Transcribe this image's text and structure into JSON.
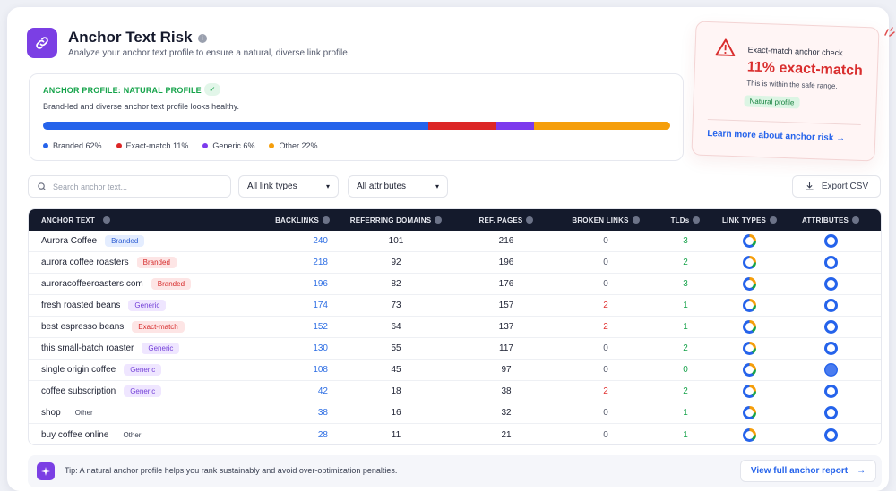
{
  "header": {
    "title": "Anchor Text Risk",
    "subtitle": "Analyze your anchor text profile to ensure a natural, diverse link profile."
  },
  "profile": {
    "status": "ANCHOR PROFILE: NATURAL PROFILE",
    "description": "Brand-led and diverse anchor text profile looks healthy.",
    "segments": [
      {
        "label": "Branded 62%",
        "percent": 62,
        "color": "#2563eb"
      },
      {
        "label": "Exact-match 11%",
        "percent": 11,
        "color": "#dc2626"
      },
      {
        "label": "Generic 6%",
        "percent": 6,
        "color": "#7c3aed"
      },
      {
        "label": "Other 22%",
        "percent": 22,
        "color": "#f59e0b"
      }
    ]
  },
  "risk_card": {
    "label": "Exact-match anchor check",
    "value": "11% exact-match",
    "note": "This is within the safe range.",
    "chip": "Natural profile",
    "link": "Learn more about anchor risk"
  },
  "controls": {
    "search_placeholder": "Search anchor text...",
    "link_type": "All link types",
    "attributes": "All attributes",
    "export": "Export CSV"
  },
  "table": {
    "columns": [
      "ANCHOR TEXT",
      "BACKLINKS",
      "REFERRING DOMAINS",
      "REF. PAGES",
      "BROKEN LINKS",
      "TLDs",
      "LINK TYPES",
      "ATTRIBUTES"
    ],
    "rows": [
      {
        "anchor": "Aurora Coffee",
        "tag": "Branded",
        "tag_type": "branded",
        "backlinks": "240",
        "domains": "101",
        "pages": "216",
        "broken": "0",
        "tlds": "3"
      },
      {
        "anchor": "aurora coffee roasters",
        "tag": "Branded",
        "tag_type": "exact",
        "backlinks": "218",
        "domains": "92",
        "pages": "196",
        "broken": "0",
        "tlds": "2"
      },
      {
        "anchor": "auroracoffeeroasters.com",
        "tag": "Branded",
        "tag_type": "exact",
        "backlinks": "196",
        "domains": "82",
        "pages": "176",
        "broken": "0",
        "tlds": "3"
      },
      {
        "anchor": "fresh roasted beans",
        "tag": "Generic",
        "tag_type": "generic",
        "backlinks": "174",
        "domains": "73",
        "pages": "157",
        "broken": "2",
        "tlds": "1"
      },
      {
        "anchor": "best espresso beans",
        "tag": "Exact-match",
        "tag_type": "exact",
        "backlinks": "152",
        "domains": "64",
        "pages": "137",
        "broken": "2",
        "tlds": "1"
      },
      {
        "anchor": "this small-batch roaster",
        "tag": "Generic",
        "tag_type": "generic",
        "backlinks": "130",
        "domains": "55",
        "pages": "117",
        "broken": "0",
        "tlds": "2"
      },
      {
        "anchor": "single origin coffee",
        "tag": "Generic",
        "tag_type": "generic",
        "backlinks": "108",
        "domains": "45",
        "pages": "97",
        "broken": "0",
        "tlds": "0"
      },
      {
        "anchor": "coffee subscription",
        "tag": "Generic",
        "tag_type": "generic",
        "backlinks": "42",
        "domains": "18",
        "pages": "38",
        "broken": "2",
        "tlds": "2"
      },
      {
        "anchor": "shop",
        "tag": "Other",
        "tag_type": "other",
        "backlinks": "38",
        "domains": "16",
        "pages": "32",
        "broken": "0",
        "tlds": "1"
      },
      {
        "anchor": "buy coffee online",
        "tag": "Other",
        "tag_type": "other",
        "backlinks": "28",
        "domains": "11",
        "pages": "21",
        "broken": "0",
        "tlds": "1"
      }
    ]
  },
  "tip": {
    "text": "Tip: A natural anchor profile helps you rank sustainably and avoid over-optimization penalties.",
    "button": "View full anchor report"
  }
}
